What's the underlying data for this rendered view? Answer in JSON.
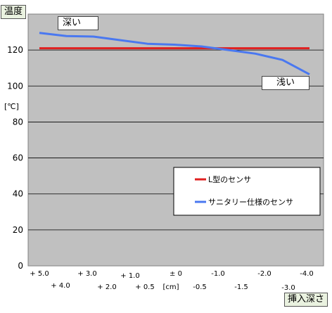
{
  "chart_data": {
    "type": "line",
    "ylabel_top": "温度",
    "yunit": "[℃]",
    "xlabel": "挿入深さ",
    "xunit": "[cm]",
    "ylim": [
      0,
      140
    ],
    "yticks": [
      0,
      20,
      40,
      60,
      80,
      100,
      120
    ],
    "x_tick_labels": [
      "+ 5.0",
      "+ 4.0",
      "+ 3.0",
      "+ 2.0",
      "+ 1.0",
      "+ 0.5",
      "± 0",
      "-0.5",
      "-1.0",
      "-1.5",
      "-2.0",
      "-3.0",
      "-4.0"
    ],
    "callouts": {
      "deep": "深い",
      "shallow": "浅い"
    },
    "series": [
      {
        "name": "L型のセンサ",
        "color": "#e02020",
        "points": [
          [
            0,
            121
          ],
          [
            1,
            121
          ]
        ]
      },
      {
        "name": "サニタリー仕様のセンサ",
        "color": "#4a78f0",
        "points": [
          [
            0,
            129.5
          ],
          [
            0.1,
            127.8
          ],
          [
            0.2,
            127.5
          ],
          [
            0.3,
            125.5
          ],
          [
            0.4,
            123.5
          ],
          [
            0.5,
            123
          ],
          [
            0.6,
            122
          ],
          [
            0.7,
            120
          ],
          [
            0.8,
            118
          ],
          [
            0.9,
            114.5
          ],
          [
            1,
            106.5
          ]
        ]
      }
    ],
    "grid": true,
    "legend_position": "lower-right"
  }
}
